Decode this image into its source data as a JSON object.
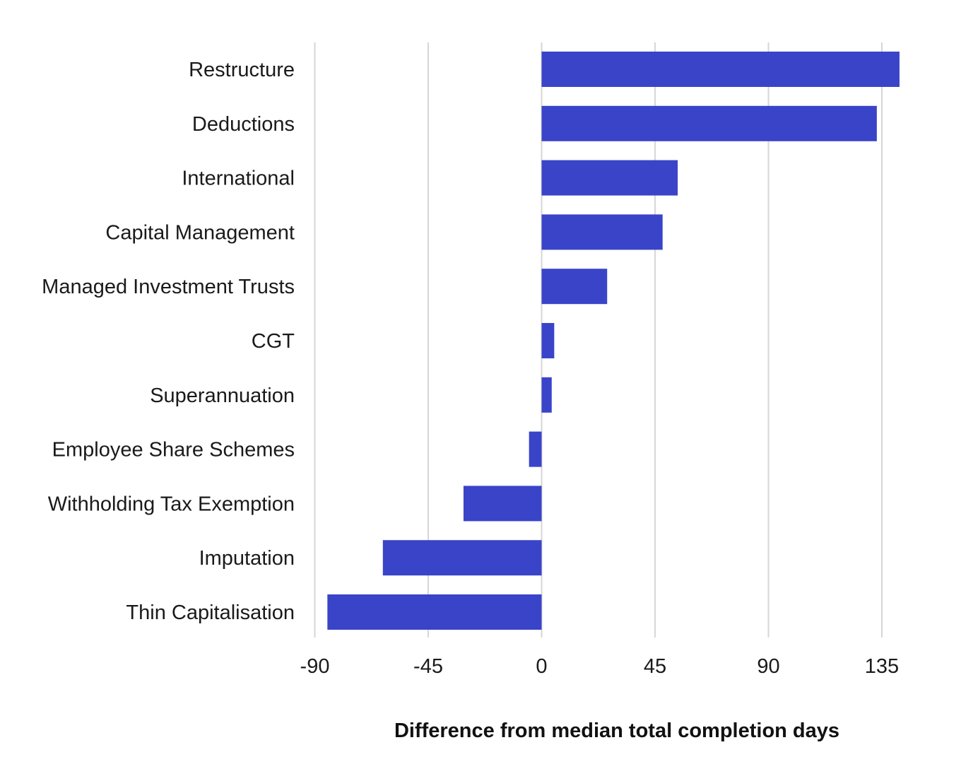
{
  "chart_data": {
    "type": "bar",
    "orientation": "horizontal",
    "title": "",
    "xlabel": "Difference from median total completion days",
    "ylabel": "",
    "xlim": [
      -90,
      145
    ],
    "xticks": [
      -90,
      -45,
      0,
      45,
      90,
      135
    ],
    "grid": true,
    "bar_color": "#3944c9",
    "grid_color": "#d6d6d6",
    "categories": [
      "Restructure",
      "Deductions",
      "International",
      "Capital Management",
      "Managed Investment Trusts",
      "CGT",
      "Superannuation",
      "Employee Share Schemes",
      "Withholding Tax Exemption",
      "Imputation",
      "Thin Capitalisation"
    ],
    "values": [
      142,
      133,
      54,
      48,
      26,
      5,
      4,
      -5,
      -31,
      -63,
      -85
    ]
  }
}
